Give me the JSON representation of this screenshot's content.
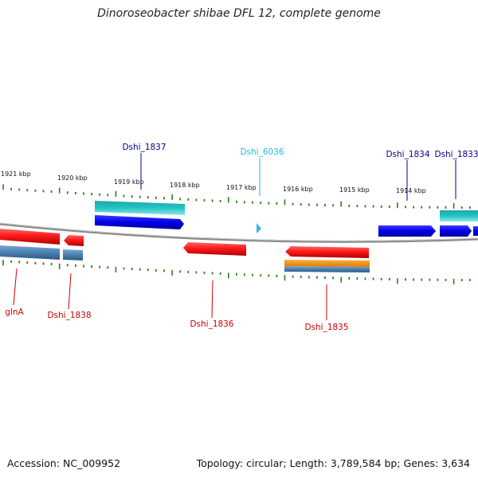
{
  "title": "Dinoroseobacter shibae DFL 12, complete genome",
  "footer": {
    "accession": "Accession: NC_009952",
    "topology": "Topology: circular; Length: 3,789,584 bp; Genes: 3,634"
  },
  "colors": {
    "tick": "#2e7d1e",
    "backbone": "#888888",
    "gene_label_blue": "#00008b",
    "gene_label_cyan": "#1fb7e0",
    "gene_label_red": "#cc0000",
    "forward_gene": "#0000e0",
    "forward_rna": "#20c0c0",
    "reverse_gene": "#ee0000",
    "reverse_rna": "#4a7fb0",
    "reverse_other": "#f08a00"
  },
  "scale_labels": [
    "1921 kbp",
    "1920 kbp",
    "1919 kbp",
    "1918 kbp",
    "1917 kbp",
    "1916 kbp",
    "1915 kbp",
    "1914 kbp"
  ],
  "gene_labels": [
    {
      "name": "Dshi_1837",
      "color": "blue"
    },
    {
      "name": "Dshi_6036",
      "color": "cyan"
    },
    {
      "name": "Dshi_1834",
      "color": "blue"
    },
    {
      "name": "Dshi_1833",
      "color": "blue"
    },
    {
      "name": "glnA",
      "color": "red"
    },
    {
      "name": "Dshi_1838",
      "color": "red"
    },
    {
      "name": "Dshi_1836",
      "color": "red"
    },
    {
      "name": "Dshi_1835",
      "color": "red"
    }
  ]
}
